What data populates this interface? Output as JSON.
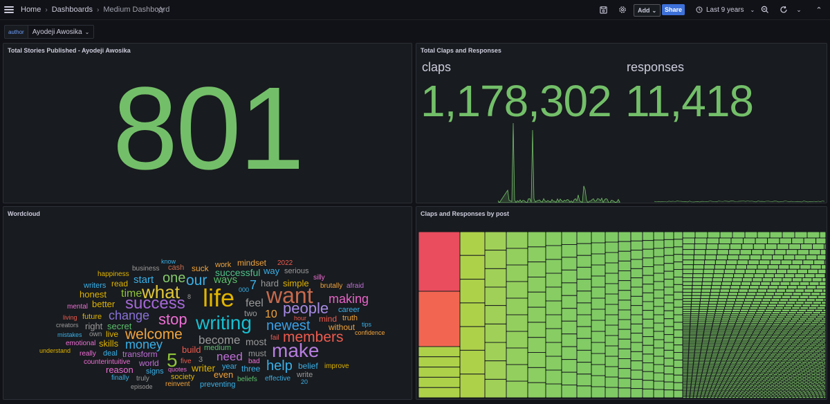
{
  "nav": {
    "crumb_home": "Home",
    "crumb_dashboards": "Dashboards",
    "crumb_current": "Medium Dashboard",
    "add_label": "Add",
    "share_label": "Share",
    "time_range": "Last 9 years",
    "icons": [
      "menu-icon",
      "star-icon",
      "save-icon",
      "gear-icon",
      "clock-icon",
      "zoom-out-icon",
      "refresh-icon",
      "chevron-down-icon"
    ]
  },
  "variable": {
    "label": "author",
    "value": "Ayodeji Awosika"
  },
  "panels": {
    "total_stories": {
      "title": "Total Stories Published - Ayodeji Awosika",
      "value": "801"
    },
    "claps_responses": {
      "title": "Total Claps and Responses",
      "claps_label": "claps",
      "claps_value": "1,178,302",
      "responses_label": "responses",
      "responses_value": "11,418"
    },
    "wordcloud": {
      "title": "Wordcloud"
    },
    "treemap": {
      "title": "Claps and Responses by post"
    }
  },
  "wordcloud_words": [
    {
      "w": "life",
      "c": "#e0b400"
    },
    {
      "w": "writing",
      "c": "#17bfd1"
    },
    {
      "w": "success",
      "c": "#a668d8"
    },
    {
      "w": "want",
      "c": "#c66a4e"
    },
    {
      "w": "make",
      "c": "#b77ee0"
    },
    {
      "w": "what",
      "c": "#e0c63a"
    },
    {
      "w": "welcome",
      "c": "#f2a43c"
    },
    {
      "w": "people",
      "c": "#a78be6"
    },
    {
      "w": "members",
      "c": "#ef5b4f"
    },
    {
      "w": "stop",
      "c": "#ef6fd6"
    },
    {
      "w": "newest",
      "c": "#3aa0e8"
    },
    {
      "w": "our",
      "c": "#3ab0e8"
    },
    {
      "w": "change",
      "c": "#8a72d8"
    },
    {
      "w": "money",
      "c": "#3ab0e8"
    },
    {
      "w": "become",
      "c": "#9a9a9a"
    },
    {
      "w": "one",
      "c": "#85c96c"
    },
    {
      "w": "5",
      "c": "#8fc43a"
    },
    {
      "w": "help",
      "c": "#3ab0e8"
    },
    {
      "w": "making",
      "c": "#e864c8"
    },
    {
      "w": "need",
      "c": "#c070d8"
    },
    {
      "w": "ways",
      "c": "#5cc06c"
    },
    {
      "w": "feel",
      "c": "#9a9a9a"
    },
    {
      "w": "start",
      "c": "#3ab0e8"
    },
    {
      "w": "time",
      "c": "#8fc43a"
    },
    {
      "w": "better",
      "c": "#e0b400"
    },
    {
      "w": "successful",
      "c": "#4fc28a"
    },
    {
      "w": "7",
      "c": "#3ab0e8"
    },
    {
      "w": "10",
      "c": "#f2a43c"
    },
    {
      "w": "honest",
      "c": "#e0b400"
    },
    {
      "w": "read",
      "c": "#e0b400"
    },
    {
      "w": "writers",
      "c": "#3ab0e8"
    },
    {
      "w": "happiness",
      "c": "#e0b400"
    },
    {
      "w": "business",
      "c": "#9a9a9a"
    },
    {
      "w": "cash",
      "c": "#c66a4e"
    },
    {
      "w": "know",
      "c": "#3ab0e8"
    },
    {
      "w": "suck",
      "c": "#f2a43c"
    },
    {
      "w": "work",
      "c": "#f2a43c"
    },
    {
      "w": "mindset",
      "c": "#f2a43c"
    },
    {
      "w": "2022",
      "c": "#ef5b4f"
    },
    {
      "w": "way",
      "c": "#3ab0e8"
    },
    {
      "w": "serious",
      "c": "#9a9a9a"
    },
    {
      "w": "hard",
      "c": "#9a9a9a"
    },
    {
      "w": "simple",
      "c": "#e0b400"
    },
    {
      "w": "silly",
      "c": "#ef6fd6"
    },
    {
      "w": "brutally",
      "c": "#f2a43c"
    },
    {
      "w": "afraid",
      "c": "#c070d8"
    },
    {
      "w": "career",
      "c": "#3ab0e8"
    },
    {
      "w": "mental",
      "c": "#ef6fd6"
    },
    {
      "w": "future",
      "c": "#e0b400"
    },
    {
      "w": "living",
      "c": "#ef5b4f"
    },
    {
      "w": "right",
      "c": "#9a9a9a"
    },
    {
      "w": "secret",
      "c": "#5cc06c"
    },
    {
      "w": "creators",
      "c": "#9a9a9a"
    },
    {
      "w": "mistakes",
      "c": "#3ab0e8"
    },
    {
      "w": "own",
      "c": "#9a9a9a"
    },
    {
      "w": "live",
      "c": "#e0b400"
    },
    {
      "w": "emotional",
      "c": "#ef6fd6"
    },
    {
      "w": "skills",
      "c": "#e0b400"
    },
    {
      "w": "two",
      "c": "#9a9a9a"
    },
    {
      "w": "hour",
      "c": "#ef5b4f"
    },
    {
      "w": "mind",
      "c": "#ef5b4f"
    },
    {
      "w": "truth",
      "c": "#f2a43c"
    },
    {
      "w": "without",
      "c": "#f2a43c"
    },
    {
      "w": "tips",
      "c": "#3ab0e8"
    },
    {
      "w": "confidence",
      "c": "#f2a43c"
    },
    {
      "w": "fail",
      "c": "#ef5b4f"
    },
    {
      "w": "most",
      "c": "#9a9a9a"
    },
    {
      "w": "build",
      "c": "#ef5b4f"
    },
    {
      "w": "medium",
      "c": "#5cc06c"
    },
    {
      "w": "3",
      "c": "#9a9a9a"
    },
    {
      "w": "understand",
      "c": "#e0b400"
    },
    {
      "w": "really",
      "c": "#ef6fd6"
    },
    {
      "w": "deal",
      "c": "#3ab0e8"
    },
    {
      "w": "transform",
      "c": "#c070d8"
    },
    {
      "w": "five",
      "c": "#ef5b4f"
    },
    {
      "w": "year",
      "c": "#3ab0e8"
    },
    {
      "w": "must",
      "c": "#9a9a9a"
    },
    {
      "w": "bad",
      "c": "#ef6fd6"
    },
    {
      "w": "counterintuitive",
      "c": "#ef6fd6"
    },
    {
      "w": "world",
      "c": "#c070d8"
    },
    {
      "w": "reason",
      "c": "#ef6fd6"
    },
    {
      "w": "quotes",
      "c": "#ef6fd6"
    },
    {
      "w": "writer",
      "c": "#e0b400"
    },
    {
      "w": "even",
      "c": "#f2a43c"
    },
    {
      "w": "three",
      "c": "#3ab0e8"
    },
    {
      "w": "belief",
      "c": "#3ab0e8"
    },
    {
      "w": "improve",
      "c": "#e0b400"
    },
    {
      "w": "signs",
      "c": "#3ab0e8"
    },
    {
      "w": "society",
      "c": "#e0b400"
    },
    {
      "w": "finally",
      "c": "#3ab0e8"
    },
    {
      "w": "truly",
      "c": "#9a9a9a"
    },
    {
      "w": "reinvent",
      "c": "#f2a43c"
    },
    {
      "w": "preventing",
      "c": "#3ab0e8"
    },
    {
      "w": "beliefs",
      "c": "#5cc06c"
    },
    {
      "w": "effective",
      "c": "#3ab0e8"
    },
    {
      "w": "write",
      "c": "#9a9a9a"
    },
    {
      "w": "20",
      "c": "#3ab0e8"
    },
    {
      "w": "episode",
      "c": "#9a9a9a"
    },
    {
      "w": "8",
      "c": "#9a9a9a"
    },
    {
      "w": "000",
      "c": "#3ab0e8"
    }
  ]
}
